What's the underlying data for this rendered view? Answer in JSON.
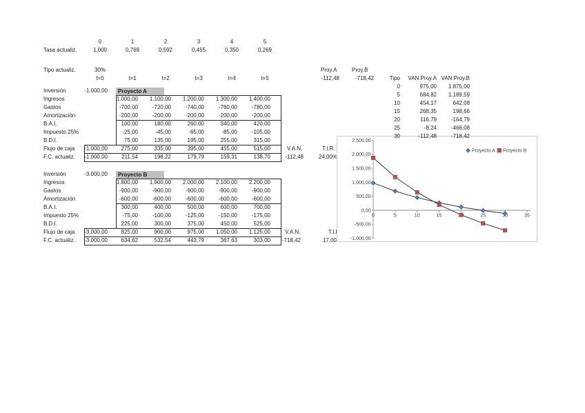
{
  "header_rows": {
    "periods": [
      "0",
      "1",
      "2",
      "3",
      "4",
      "5"
    ],
    "tasa_label": "Tasa actualiz.",
    "tasa_values": [
      "1,000",
      "0,769",
      "0,592",
      "0,455",
      "0,350",
      "0,269"
    ],
    "tipo_label": "Tipo actualiz.",
    "tipo_value": "30%",
    "time_headers": [
      "t=0",
      "t=1",
      "t=2",
      "t=3",
      "t=4",
      "t=5"
    ]
  },
  "summary": {
    "proy_a_label": "Proy.A",
    "proy_a_value": "-112,48",
    "proy_b_label": "Proy.B",
    "proy_b_value": "-718,42"
  },
  "van_table": {
    "headers": [
      "Tipo",
      "VAN Proy.A",
      "VAN Proy.B"
    ],
    "rows": [
      [
        "0",
        "975,00",
        "1.875,00"
      ],
      [
        "5",
        "684,82",
        "1.189,59"
      ],
      [
        "10",
        "454,17",
        "642,08"
      ],
      [
        "15",
        "268,35",
        "198,66"
      ],
      [
        "20",
        "116,79",
        "-164,79"
      ],
      [
        "25",
        "-8,24",
        "-466,08"
      ],
      [
        "30",
        "-112,48",
        "-718,42"
      ]
    ]
  },
  "project_a": {
    "title": "Proyecto A",
    "inversion_label": "Inversión",
    "inversion_value": "-1.000,00",
    "rows": [
      {
        "label": "Ingresos",
        "values": [
          "1.000,00",
          "1.100,00",
          "1.200,00",
          "1.300,00",
          "1.400,00"
        ]
      },
      {
        "label": "Gastos",
        "values": [
          "-700,00",
          "-720,00",
          "-740,00",
          "-760,00",
          "-780,00"
        ]
      },
      {
        "label": "Amortización",
        "values": [
          "-200,00",
          "-200,00",
          "-200,00",
          "-200,00",
          "-200,00"
        ]
      },
      {
        "label": "B.A.I.",
        "values": [
          "100,00",
          "180,00",
          "260,00",
          "340,00",
          "420,00"
        ]
      },
      {
        "label": "Impuesto 25%",
        "values": [
          "-25,00",
          "-45,00",
          "-65,00",
          "-85,00",
          "-105,00"
        ]
      },
      {
        "label": "B.D.I.",
        "values": [
          "75,00",
          "135,00",
          "195,00",
          "255,00",
          "315,00"
        ]
      }
    ],
    "flujo": {
      "label": "Flujo de caja",
      "values": [
        "-1.000,00",
        "275,00",
        "335,00",
        "395,00",
        "455,00",
        "515,00"
      ]
    },
    "fc": {
      "label": "F.C. actualiz.",
      "values": [
        "-1.000,00",
        "211,54",
        "198,22",
        "179,79",
        "159,31",
        "138,70"
      ]
    },
    "van_label": "V.A.N.",
    "van_value": "-112,48",
    "tir_label": "T.I.R.",
    "tir_value": "24,00%"
  },
  "project_b": {
    "title": "Proyecto B",
    "inversion_label": "Inversión",
    "inversion_value": "-3.000,00",
    "rows": [
      {
        "label": "Ingresos",
        "values": [
          "1.800,00",
          "1.900,00",
          "2.000,00",
          "2.100,00",
          "2.200,00"
        ]
      },
      {
        "label": "Gastos",
        "values": [
          "-900,00",
          "-900,00",
          "-900,00",
          "-900,00",
          "-900,00"
        ]
      },
      {
        "label": "Amortización",
        "values": [
          "-600,00",
          "-600,00",
          "-600,00",
          "-600,00",
          "-600,00"
        ]
      },
      {
        "label": "B.A.I.",
        "values": [
          "300,00",
          "400,00",
          "500,00",
          "600,00",
          "700,00"
        ]
      },
      {
        "label": "Impuesto 25%",
        "values": [
          "-75,00",
          "-100,00",
          "-125,00",
          "-150,00",
          "-175,00"
        ]
      },
      {
        "label": "B.D.I.",
        "values": [
          "225,00",
          "300,00",
          "375,00",
          "450,00",
          "525,00"
        ]
      }
    ],
    "flujo": {
      "label": "Flujo de caja",
      "values": [
        "-3.000,00",
        "825,00",
        "900,00",
        "975,00",
        "1.050,00",
        "1.125,00"
      ]
    },
    "fc": {
      "label": "F.C. actualiz.",
      "values": [
        "-3.000,00",
        "634,62",
        "532,54",
        "443,79",
        "367,63",
        "303,00"
      ]
    },
    "van_label": "V.A.N.",
    "van_value": "-718,42",
    "tir_label": "T.I.R.",
    "tir_value": "17,00%"
  },
  "chart_data": {
    "type": "scatter",
    "title": "",
    "xlabel": "",
    "ylabel": "",
    "x": [
      0,
      5,
      10,
      15,
      20,
      25,
      30
    ],
    "series": [
      {
        "name": "Proyecto A",
        "marker": "diamond",
        "color": "#4f81bd",
        "edge": "#36608f",
        "values": [
          975.0,
          684.82,
          454.17,
          268.35,
          116.79,
          -8.24,
          -112.48
        ]
      },
      {
        "name": "Proyecto B",
        "marker": "square",
        "color": "#c0504d",
        "edge": "#953735",
        "values": [
          1875.0,
          1189.59,
          642.08,
          198.66,
          -164.79,
          -466.08,
          -718.42
        ]
      }
    ],
    "line_color": "#4a4a4a",
    "xlim": [
      0,
      35
    ],
    "ylim": [
      -1000,
      2500
    ],
    "x_ticks": [
      {
        "value": 0,
        "label": "0"
      },
      {
        "value": 5,
        "label": "5"
      },
      {
        "value": 10,
        "label": "10"
      },
      {
        "value": 15,
        "label": "15"
      },
      {
        "value": 20,
        "label": "20"
      },
      {
        "value": 25,
        "label": "25"
      },
      {
        "value": 30,
        "label": "30"
      },
      {
        "value": 35,
        "label": "35"
      }
    ],
    "y_ticks": [
      {
        "value": 2500,
        "label": "2.500,00"
      },
      {
        "value": 2000,
        "label": "2.000,00"
      },
      {
        "value": 1500,
        "label": "1.500,00"
      },
      {
        "value": 1000,
        "label": "1.000,00"
      },
      {
        "value": 500,
        "label": "500,00"
      },
      {
        "value": 0,
        "label": "0,00"
      },
      {
        "value": -500,
        "label": "-500,00"
      },
      {
        "value": -1000,
        "label": "-1.000,00"
      }
    ],
    "gridlines": false,
    "legend_position": "top-right"
  }
}
